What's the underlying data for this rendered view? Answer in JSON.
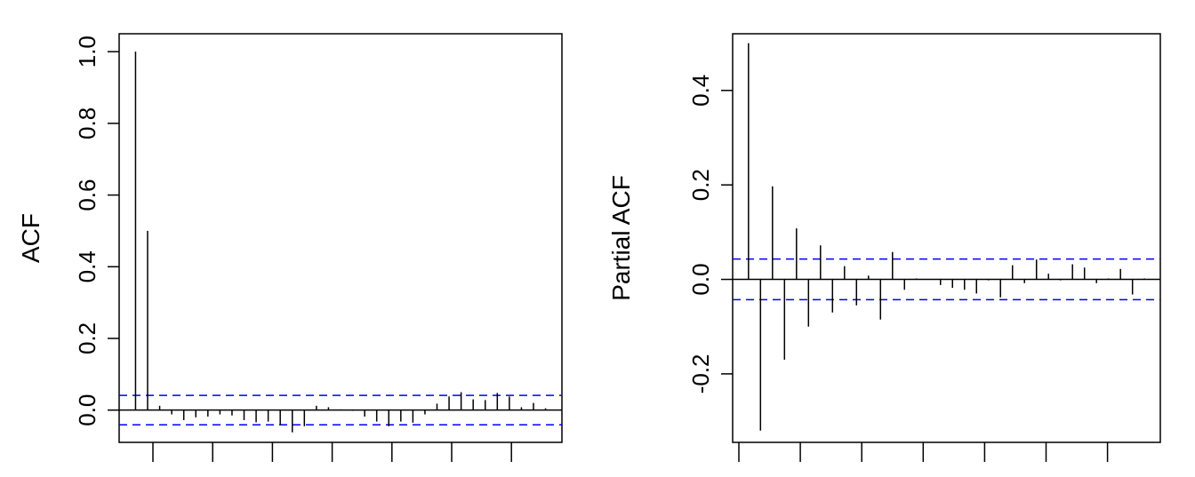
{
  "chart_data": [
    {
      "type": "bar",
      "ylabel": "ACF",
      "lags": [
        0,
        1,
        2,
        3,
        4,
        5,
        6,
        7,
        8,
        9,
        10,
        11,
        12,
        13,
        14,
        15,
        16,
        17,
        18,
        19,
        20,
        21,
        22,
        23,
        24,
        25,
        26,
        27,
        28,
        29,
        30,
        31,
        32,
        33,
        34
      ],
      "values": [
        1.0,
        0.5,
        0.012,
        -0.012,
        -0.028,
        -0.02,
        -0.018,
        -0.012,
        -0.015,
        -0.028,
        -0.034,
        -0.032,
        -0.04,
        -0.062,
        -0.045,
        0.012,
        0.008,
        0.002,
        -0.002,
        -0.018,
        -0.032,
        -0.045,
        -0.032,
        -0.035,
        -0.012,
        0.018,
        0.038,
        0.05,
        0.03,
        0.028,
        0.048,
        0.038,
        0.008,
        0.02,
        0.005
      ],
      "ylim": [
        -0.09,
        1.05
      ],
      "yticks": [
        0.0,
        0.2,
        0.4,
        0.6,
        0.8,
        1.0
      ],
      "ytick_labels": [
        "0.0",
        "0.2",
        "0.4",
        "0.6",
        "0.8",
        "1.0"
      ],
      "x_tick_count": 7,
      "ci": 0.041,
      "ci_color": "#0000ff",
      "grid": false
    },
    {
      "type": "bar",
      "ylabel": "Partial ACF",
      "lags": [
        1,
        2,
        3,
        4,
        5,
        6,
        7,
        8,
        9,
        10,
        11,
        12,
        13,
        14,
        15,
        16,
        17,
        18,
        19,
        20,
        21,
        22,
        23,
        24,
        25,
        26,
        27,
        28,
        29,
        30,
        31,
        32,
        33,
        34
      ],
      "values": [
        0.5,
        -0.32,
        0.197,
        -0.17,
        0.108,
        -0.1,
        0.072,
        -0.07,
        0.028,
        -0.055,
        0.008,
        -0.085,
        0.058,
        -0.022,
        0.002,
        0.0,
        -0.012,
        -0.018,
        -0.022,
        -0.03,
        -0.002,
        -0.038,
        0.03,
        -0.008,
        0.042,
        0.012,
        -0.002,
        0.032,
        0.025,
        -0.008,
        0.002,
        0.022,
        -0.032,
        0.002
      ],
      "ylim": [
        -0.345,
        0.52
      ],
      "yticks": [
        -0.2,
        0.0,
        0.2,
        0.4
      ],
      "ytick_labels": [
        "-0.2",
        "0.0",
        "0.2",
        "0.4"
      ],
      "x_tick_count": 7,
      "ci": 0.043,
      "ci_color": "#0000ff",
      "grid": false
    }
  ]
}
